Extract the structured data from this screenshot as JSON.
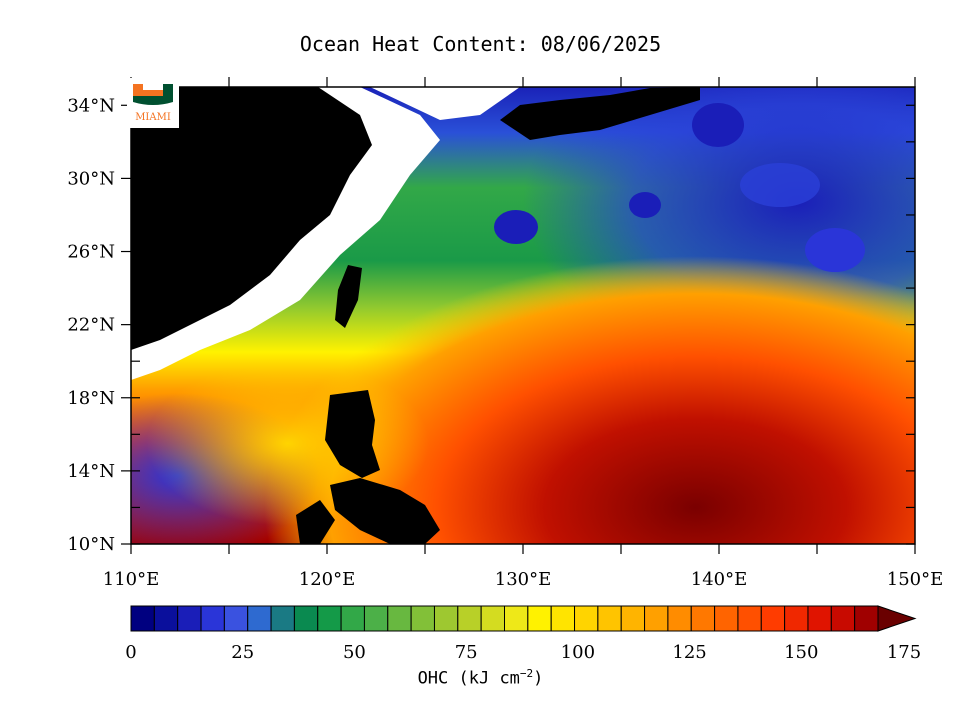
{
  "title": "Ocean Heat Content: 08/06/2025",
  "logo": {
    "text": "MIAMI",
    "colors": {
      "orange": "#f47321",
      "green": "#005030"
    }
  },
  "map": {
    "extent": {
      "lon": [
        110,
        150
      ],
      "lat": [
        10,
        35
      ]
    },
    "lat_ticks": [
      {
        "value": 34,
        "label": "34°N"
      },
      {
        "value": 30,
        "label": "30°N"
      },
      {
        "value": 26,
        "label": "26°N"
      },
      {
        "value": 22,
        "label": "22°N"
      },
      {
        "value": 18,
        "label": "18°N"
      },
      {
        "value": 14,
        "label": "14°N"
      },
      {
        "value": 10,
        "label": "10°N"
      }
    ],
    "lon_ticks": [
      {
        "value": 110,
        "label": "110°E"
      },
      {
        "value": 120,
        "label": "120°E"
      },
      {
        "value": 130,
        "label": "130°E"
      },
      {
        "value": 140,
        "label": "140°E"
      },
      {
        "value": 150,
        "label": "150°E"
      }
    ],
    "land_color": "#000000",
    "missing_color": "#ffffff"
  },
  "colorbar": {
    "min": 0,
    "max": 175,
    "labels": [
      "0",
      "25",
      "50",
      "75",
      "100",
      "125",
      "150",
      "175"
    ],
    "units_text": "OHC (kJ cm",
    "units_exp": "−2",
    "units_close": ")",
    "colors": [
      "#000080",
      "#0a0f9c",
      "#1a1eb8",
      "#2a35d8",
      "#3a52e0",
      "#2e6ad0",
      "#1a7a84",
      "#0a8a50",
      "#149a48",
      "#32a848",
      "#4cb048",
      "#68b840",
      "#82c038",
      "#9ec830",
      "#b8d028",
      "#d4dc20",
      "#eee818",
      "#fff200",
      "#ffe400",
      "#ffd400",
      "#ffc400",
      "#ffb400",
      "#ffa000",
      "#ff8c00",
      "#ff7800",
      "#ff6400",
      "#ff5000",
      "#ff3c00",
      "#f02800",
      "#e01400",
      "#c80a00",
      "#a00000"
    ],
    "over_color": "#6a0000"
  }
}
